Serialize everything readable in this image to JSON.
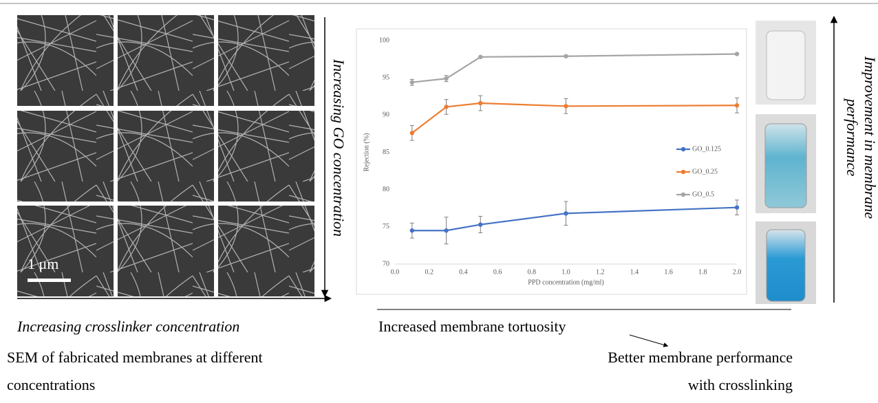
{
  "chart_data": {
    "type": "line",
    "x_label": "PPD concentration (mg/ml)",
    "y_label": "Rejection (%)",
    "x": [
      0.1,
      0.3,
      0.5,
      1.0,
      2.0
    ],
    "series": [
      {
        "name": "GO_0.125",
        "color": "#4472c4",
        "values": [
          74.5,
          74.5,
          75.3,
          76.8,
          77.6
        ],
        "errors": [
          1.0,
          1.8,
          1.1,
          1.6,
          1.0
        ]
      },
      {
        "name": "GO_0.25",
        "color": "#ed7d31",
        "values": [
          87.6,
          91.1,
          91.6,
          91.2,
          91.3
        ],
        "errors": [
          1.0,
          1.0,
          1.0,
          1.0,
          1.0
        ]
      },
      {
        "name": "GO_0.5",
        "color": "#a5a5a5",
        "values": [
          94.4,
          94.9,
          97.8,
          97.9,
          98.2
        ],
        "errors": [
          0.4,
          0.4,
          0.1,
          0.1,
          0.1
        ]
      }
    ],
    "xlim": [
      0,
      2
    ],
    "xticks": [
      {
        "value": 0,
        "label": "0.0"
      },
      0.2,
      0.4,
      0.6,
      0.8,
      {
        "value": 1,
        "label": "1.0"
      },
      1.2,
      1.4,
      1.6,
      1.8,
      {
        "value": 2,
        "label": "2.0"
      }
    ],
    "ylim": [
      70,
      100
    ],
    "yticks": [
      70,
      75,
      80,
      85,
      90,
      95,
      100
    ],
    "legend": "right"
  },
  "sem_panel": {
    "scale_bar": "1 μm",
    "vertical_label": "Increasing GO concentration",
    "horizontal_label": "Increasing crosslinker concentration",
    "caption": [
      "SEM of fabricated membranes at different",
      "concentrations"
    ]
  },
  "right_panel": {
    "vertical_label": [
      "Improvement in membrane",
      "performance"
    ]
  },
  "bottom": {
    "left_text": "Increased membrane tortuosity",
    "right_text": [
      "Better membrane performance",
      "with crosslinking"
    ]
  }
}
